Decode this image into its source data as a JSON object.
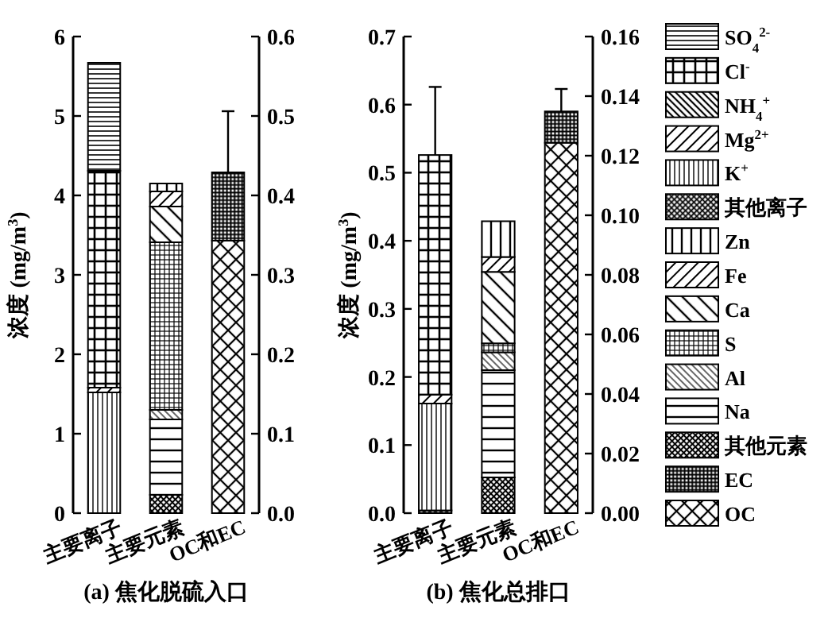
{
  "chart_data": [
    {
      "type": "bar",
      "title": "(a) 焦化脱硫入口",
      "ylabel": "浓度 (mg/m$^{3}$)",
      "categories": [
        "主要离子",
        "主要元素",
        "OC和EC"
      ],
      "stacked": true,
      "ylim": [
        0,
        6
      ],
      "yticks": [
        0,
        1,
        2,
        3,
        4,
        5,
        6
      ],
      "y2lim": [
        0,
        0.6
      ],
      "y2ticks": [
        {
          "value": 0,
          "label": "0.0"
        },
        {
          "value": 0.1,
          "label": "0.1"
        },
        {
          "value": 0.2,
          "label": "0.2"
        },
        {
          "value": 0.3,
          "label": "0.3"
        },
        {
          "value": 0.4,
          "label": "0.4"
        },
        {
          "value": 0.5,
          "label": "0.5"
        },
        {
          "value": 0.6,
          "label": "0.6"
        }
      ],
      "series": [
        {
          "color": "#000000",
          "axis": "y",
          "values": [
            null,
            null,
            null
          ]
        },
        {
          "color": "#000000",
          "axis": "y",
          "values": [
            1.52,
            null,
            null
          ]
        },
        {
          "color": "#000000",
          "axis": "y",
          "values": [
            0.06,
            null,
            null
          ]
        },
        {
          "color": "#000000",
          "axis": "y",
          "values": [
            null,
            null,
            null
          ]
        },
        {
          "color": "#000000",
          "axis": "y",
          "values": [
            2.73,
            null,
            null
          ]
        },
        {
          "color": "#000000",
          "axis": "y",
          "values": [
            1.36,
            null,
            null
          ]
        },
        {
          "color": "#000000",
          "axis": "y2",
          "values": [
            null,
            0.023,
            null
          ]
        },
        {
          "color": "#000000",
          "axis": "y2",
          "values": [
            null,
            0.095,
            null
          ]
        },
        {
          "color": "#000000",
          "axis": "y2",
          "values": [
            null,
            0.012,
            null
          ]
        },
        {
          "color": "#000000",
          "axis": "y2",
          "values": [
            null,
            0.211,
            null
          ]
        },
        {
          "color": "#000000",
          "axis": "y2",
          "values": [
            null,
            0.045,
            null
          ]
        },
        {
          "color": "#000000",
          "axis": "y2",
          "values": [
            null,
            0.019,
            null
          ]
        },
        {
          "color": "#000000",
          "axis": "y2",
          "values": [
            null,
            0.01,
            null
          ]
        },
        {
          "color": "#000000",
          "axis": "y",
          "values": [
            null,
            null,
            3.43
          ]
        },
        {
          "color": "#000000",
          "axis": "y",
          "values": [
            null,
            null,
            0.86
          ],
          "errors": [
            null,
            null,
            0.77
          ]
        }
      ]
    },
    {
      "type": "bar",
      "title": "(b) 焦化总排口",
      "ylabel": "浓度 (mg/m$^{3}$)",
      "categories": [
        "主要离子",
        "主要元素",
        "OC和EC"
      ],
      "stacked": true,
      "legend": "right",
      "ylim": [
        0,
        0.7
      ],
      "yticks": [
        {
          "value": 0,
          "label": "0.0"
        },
        {
          "value": 0.1,
          "label": "0.1"
        },
        {
          "value": 0.2,
          "label": "0.2"
        },
        {
          "value": 0.3,
          "label": "0.3"
        },
        {
          "value": 0.4,
          "label": "0.4"
        },
        {
          "value": 0.5,
          "label": "0.5"
        },
        {
          "value": 0.6,
          "label": "0.6"
        },
        {
          "value": 0.7,
          "label": "0.7"
        }
      ],
      "y2lim": [
        0,
        0.16
      ],
      "y2ticks": [
        {
          "value": 0,
          "label": "0.00"
        },
        {
          "value": 0.02,
          "label": "0.02"
        },
        {
          "value": 0.04,
          "label": "0.04"
        },
        {
          "value": 0.06,
          "label": "0.06"
        },
        {
          "value": 0.08,
          "label": "0.08"
        },
        {
          "value": 0.1,
          "label": "0.10"
        },
        {
          "value": 0.12,
          "label": "0.12"
        },
        {
          "value": 0.14,
          "label": "0.14"
        },
        {
          "value": 0.16,
          "label": "0.16"
        }
      ],
      "series": [
        {
          "name": "其他离子",
          "color": "#000000",
          "axis": "y",
          "values": [
            0.004,
            null,
            null
          ]
        },
        {
          "name": "K$^{+}$",
          "color": "#000000",
          "axis": "y",
          "values": [
            0.157,
            null,
            null
          ]
        },
        {
          "name": "Mg$^{2+}$",
          "color": "#000000",
          "axis": "y",
          "values": [
            0.013,
            null,
            null
          ]
        },
        {
          "name": "NH$_{4}$$^{+}$",
          "color": "#000000",
          "axis": "y",
          "values": [
            null,
            null,
            null
          ]
        },
        {
          "name": "Cl$^{-}$",
          "color": "#000000",
          "axis": "y",
          "values": [
            0.352,
            null,
            null
          ],
          "errors": [
            0.1,
            null,
            null
          ]
        },
        {
          "name": "SO$_{4}$$^{2-}$",
          "color": "#000000",
          "axis": "y",
          "values": [
            null,
            null,
            null
          ]
        },
        {
          "name": "其他元素",
          "color": "#000000",
          "axis": "y2",
          "values": [
            null,
            0.012,
            null
          ]
        },
        {
          "name": "Na",
          "color": "#000000",
          "axis": "y2",
          "values": [
            null,
            0.036,
            null
          ]
        },
        {
          "name": "Al",
          "color": "#000000",
          "axis": "y2",
          "values": [
            null,
            0.006,
            null
          ]
        },
        {
          "name": "S",
          "color": "#000000",
          "axis": "y2",
          "values": [
            null,
            0.003,
            null
          ]
        },
        {
          "name": "Ca",
          "color": "#000000",
          "axis": "y2",
          "values": [
            null,
            0.024,
            null
          ]
        },
        {
          "name": "Fe",
          "color": "#000000",
          "axis": "y2",
          "values": [
            null,
            0.005,
            null
          ]
        },
        {
          "name": "Zn",
          "color": "#000000",
          "axis": "y2",
          "values": [
            null,
            0.012,
            null
          ]
        },
        {
          "name": "OC",
          "color": "#000000",
          "axis": "y",
          "values": [
            null,
            null,
            0.544
          ]
        },
        {
          "name": "EC",
          "color": "#000000",
          "axis": "y",
          "values": [
            null,
            null,
            0.046
          ],
          "errors": [
            null,
            null,
            0.033
          ]
        }
      ]
    }
  ]
}
